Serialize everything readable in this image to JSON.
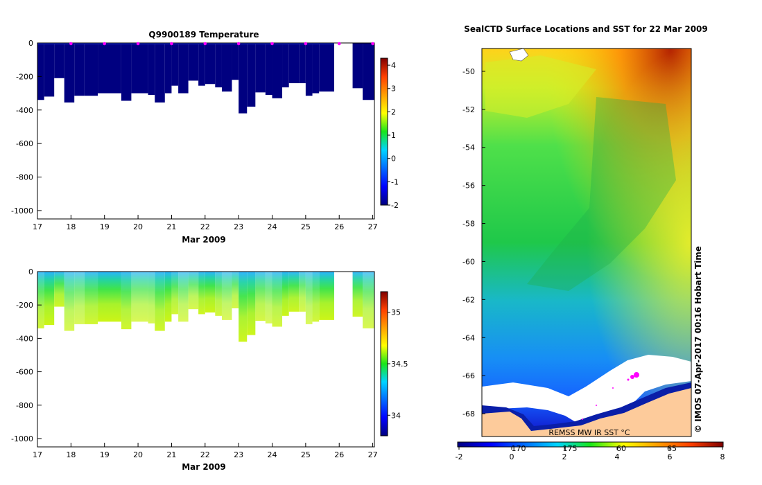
{
  "chart_data": [
    {
      "type": "heatmap",
      "title": "Q9900189  Temperature",
      "xlabel": "Mar 2009",
      "ylabel": "",
      "xlim": [
        17,
        27.05
      ],
      "ylim": [
        -1050,
        0
      ],
      "x_ticks": [
        "17",
        "18",
        "19",
        "20",
        "21",
        "22",
        "23",
        "24",
        "25",
        "26",
        "27"
      ],
      "y_ticks": [
        "0",
        "-200",
        "-400",
        "-600",
        "-800",
        "-1000"
      ],
      "colorbar": {
        "min": -2,
        "max": 4.3,
        "ticks": [
          "-2",
          "-1",
          "0",
          "1",
          "2",
          "3",
          "4"
        ]
      },
      "profile_markers_x": [
        18,
        19,
        20,
        21,
        22,
        23,
        24,
        25,
        26,
        27
      ],
      "profile_depths": [
        {
          "x0": 17.0,
          "x1": 17.2,
          "d": -340
        },
        {
          "x0": 17.2,
          "x1": 17.5,
          "d": -320
        },
        {
          "x0": 17.5,
          "x1": 17.8,
          "d": -210
        },
        {
          "x0": 17.8,
          "x1": 18.1,
          "d": -355
        },
        {
          "x0": 18.1,
          "x1": 18.4,
          "d": -315
        },
        {
          "x0": 18.4,
          "x1": 18.8,
          "d": -315
        },
        {
          "x0": 18.8,
          "x1": 19.5,
          "d": -300
        },
        {
          "x0": 19.5,
          "x1": 19.8,
          "d": -345
        },
        {
          "x0": 19.8,
          "x1": 20.3,
          "d": -300
        },
        {
          "x0": 20.3,
          "x1": 20.5,
          "d": -310
        },
        {
          "x0": 20.5,
          "x1": 20.8,
          "d": -355
        },
        {
          "x0": 20.8,
          "x1": 21.0,
          "d": -300
        },
        {
          "x0": 21.0,
          "x1": 21.2,
          "d": -255
        },
        {
          "x0": 21.2,
          "x1": 21.5,
          "d": -300
        },
        {
          "x0": 21.5,
          "x1": 21.8,
          "d": -225
        },
        {
          "x0": 21.8,
          "x1": 22.0,
          "d": -255
        },
        {
          "x0": 22.0,
          "x1": 22.3,
          "d": -245
        },
        {
          "x0": 22.3,
          "x1": 22.5,
          "d": -265
        },
        {
          "x0": 22.5,
          "x1": 22.8,
          "d": -290
        },
        {
          "x0": 22.8,
          "x1": 23.0,
          "d": -220
        },
        {
          "x0": 23.0,
          "x1": 23.25,
          "d": -420
        },
        {
          "x0": 23.25,
          "x1": 23.5,
          "d": -380
        },
        {
          "x0": 23.5,
          "x1": 23.8,
          "d": -295
        },
        {
          "x0": 23.8,
          "x1": 24.0,
          "d": -310
        },
        {
          "x0": 24.0,
          "x1": 24.3,
          "d": -330
        },
        {
          "x0": 24.3,
          "x1": 24.5,
          "d": -265
        },
        {
          "x0": 24.5,
          "x1": 24.8,
          "d": -240
        },
        {
          "x0": 24.8,
          "x1": 25.0,
          "d": -240
        },
        {
          "x0": 25.0,
          "x1": 25.2,
          "d": -315
        },
        {
          "x0": 25.2,
          "x1": 25.4,
          "d": -300
        },
        {
          "x0": 25.4,
          "x1": 25.85,
          "d": -290
        },
        {
          "x0": 26.4,
          "x1": 26.7,
          "d": -270
        },
        {
          "x0": 26.7,
          "x1": 27.05,
          "d": -340
        }
      ]
    },
    {
      "type": "heatmap",
      "title": "",
      "xlabel": "Mar 2009",
      "ylabel": "",
      "xlim": [
        17,
        27.05
      ],
      "ylim": [
        -1050,
        0
      ],
      "x_ticks": [
        "17",
        "18",
        "19",
        "20",
        "21",
        "22",
        "23",
        "24",
        "25",
        "26",
        "27"
      ],
      "y_ticks": [
        "0",
        "-200",
        "-400",
        "-600",
        "-800",
        "-1000"
      ],
      "colorbar": {
        "min": 33.8,
        "max": 35.2,
        "ticks": [
          "34",
          "34.5",
          "35"
        ]
      }
    },
    {
      "type": "heatmap",
      "title": "SealCTD Surface Locations and SST for 22 Mar 2009",
      "xlabel": "",
      "ylabel": "",
      "y_ticks": [
        "-50",
        "-52",
        "-54",
        "-56",
        "-58",
        "-60",
        "-62",
        "-64",
        "-66",
        "-68"
      ],
      "ylim": [
        -69.2,
        -48.8
      ],
      "colorbar_ticks": [
        "-2",
        "0",
        "2",
        "4",
        "6",
        "8"
      ],
      "colorbar_range": [
        -2,
        8
      ],
      "longitude_labels": [
        "170",
        "175",
        "60",
        "65"
      ],
      "source_label": "REMSS MW IR SST °C",
      "side_label": "© IMOS 07-Apr-2017 00:16 Hobart Time"
    }
  ]
}
